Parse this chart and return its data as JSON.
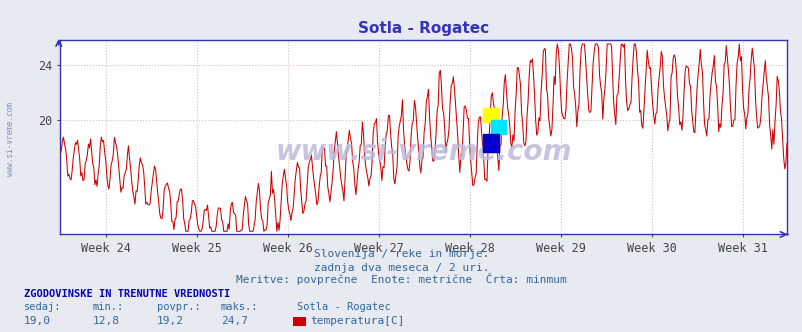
{
  "title": "Sotla - Rogatec",
  "subtitle1": "Slovenija / reke in morje.",
  "subtitle2": "zadnja dva meseca / 2 uri.",
  "subtitle3": "Meritve: povprečne  Enote: metrične  Črta: minmum",
  "xlabel_weeks": [
    "Week 24",
    "Week 25",
    "Week 26",
    "Week 27",
    "Week 28",
    "Week 29",
    "Week 30",
    "Week 31"
  ],
  "ylim_min": 11.8,
  "ylim_max": 25.8,
  "ytick_positions": [
    20,
    24
  ],
  "ytick_labels": [
    "20",
    "24"
  ],
  "line_color": "#cc0000",
  "axis_color": "#3333bb",
  "grid_color": "#ddbbbb",
  "bg_color": "#e8eaf2",
  "plot_bg": "#ffffff",
  "watermark": "www.si-vreme.com",
  "watermark_color": "#bbbbdd",
  "footer_label1": "ZGODOVINSKE IN TRENUTNE VREDNOSTI",
  "footer_cols": [
    "sedaj:",
    "min.:",
    "povpr.:",
    "maks.:",
    "Sotla - Rogatec"
  ],
  "footer_vals": [
    "19,0",
    "12,8",
    "19,2",
    "24,7"
  ],
  "footer_series": "temperatura[C]",
  "legend_color": "#cc0000",
  "text_color": "#336699",
  "side_text_color": "#6688bb"
}
